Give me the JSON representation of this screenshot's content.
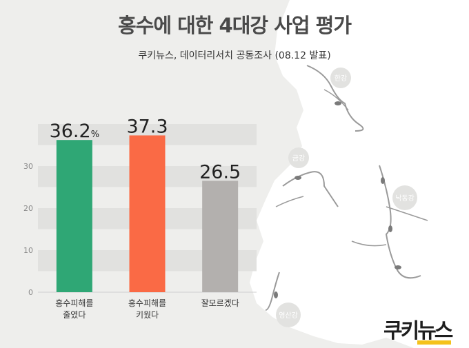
{
  "header": {
    "title": "홍수에 대한 4대강 사업 평가",
    "subtitle": "쿠키뉴스, 데이터리서치 공동조사 (08.12 발표)"
  },
  "map_labels": [
    "한강",
    "금강",
    "낙동강",
    "영산강"
  ],
  "brand": {
    "logo_part1": "쿠키",
    "logo_part2": "뉴스"
  },
  "chart_data": {
    "type": "bar",
    "title": "홍수에 대한 4대강 사업 평가",
    "categories": [
      "홍수피해를\n줄였다",
      "홍수피해를\n키웠다",
      "잘모르겠다"
    ],
    "category_lines": [
      [
        "홍수피해를",
        "줄였다"
      ],
      [
        "홍수피해를",
        "키웠다"
      ],
      [
        "잘모르겠다"
      ]
    ],
    "values": [
      36.2,
      37.3,
      26.5
    ],
    "value_labels": [
      "36.2",
      "37.3",
      "26.5"
    ],
    "unit": "%",
    "ylim": [
      0,
      40
    ],
    "yticks": [
      0,
      10,
      20,
      30
    ],
    "grid": "alternating bands",
    "colors": [
      "#2fa775",
      "#fa6a45",
      "#b3b0ae"
    ]
  }
}
